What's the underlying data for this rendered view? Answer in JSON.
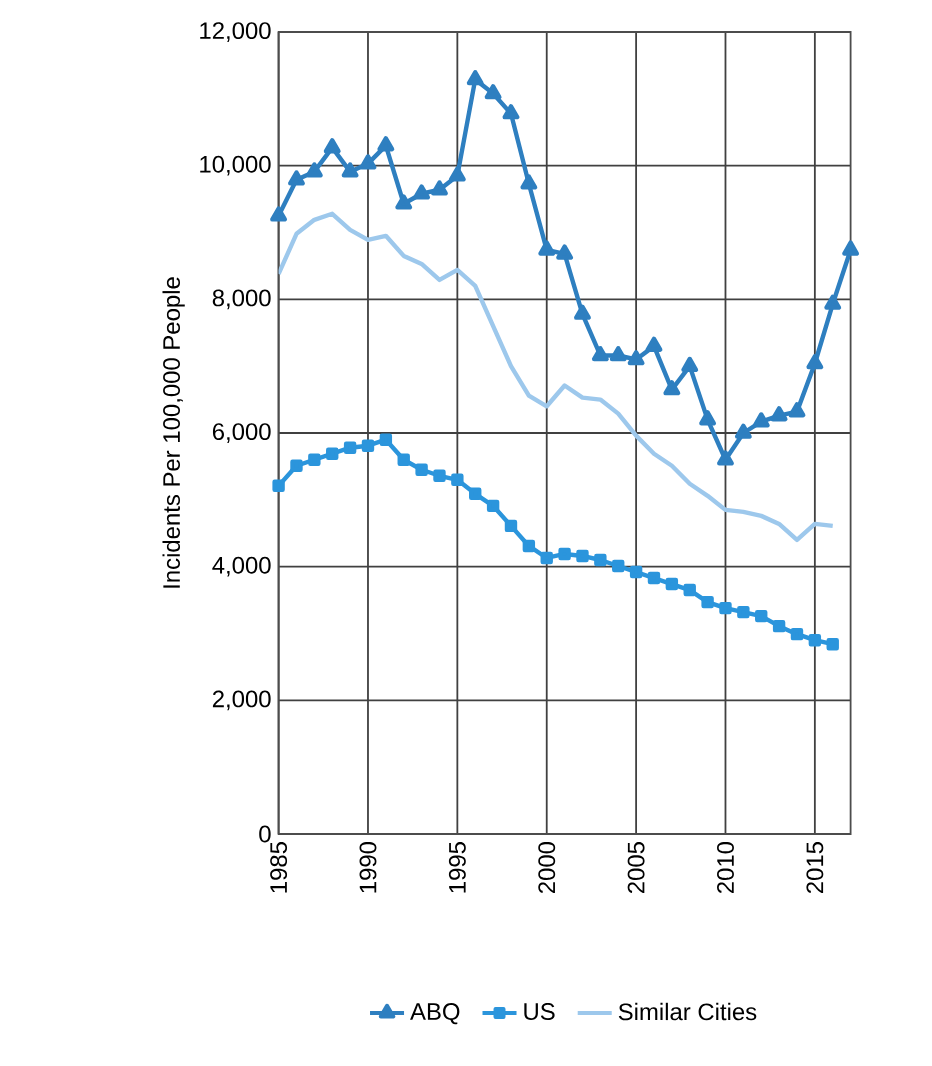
{
  "chart_data": {
    "type": "line",
    "ylabel": "Incidents Per 100,000 People",
    "x": [
      1985,
      1986,
      1987,
      1988,
      1989,
      1990,
      1991,
      1992,
      1993,
      1994,
      1995,
      1996,
      1997,
      1998,
      1999,
      2000,
      2001,
      2002,
      2003,
      2004,
      2005,
      2006,
      2007,
      2008,
      2009,
      2010,
      2011,
      2012,
      2013,
      2014,
      2015,
      2016,
      2017
    ],
    "series": [
      {
        "name": "ABQ",
        "color": "#2e7fc0",
        "marker": "triangle",
        "values": [
          9250,
          9790,
          9910,
          10270,
          9910,
          10030,
          10300,
          9430,
          9580,
          9640,
          9850,
          11290,
          11080,
          10780,
          9730,
          8740,
          8680,
          7780,
          7160,
          7160,
          7100,
          7300,
          6650,
          7000,
          6200,
          5600,
          6000,
          6170,
          6260,
          6320,
          7040,
          7930,
          8740
        ]
      },
      {
        "name": "US",
        "color": "#2b95dc",
        "marker": "square",
        "values": [
          5210,
          5510,
          5600,
          5690,
          5780,
          5810,
          5900,
          5600,
          5450,
          5360,
          5300,
          5090,
          4910,
          4610,
          4310,
          4130,
          4190,
          4160,
          4100,
          4010,
          3920,
          3830,
          3740,
          3650,
          3470,
          3380,
          3320,
          3260,
          3110,
          2990,
          2900,
          2840,
          null
        ]
      },
      {
        "name": "Similar Cities",
        "color": "#9dc8ec",
        "marker": "none",
        "values": [
          8380,
          8980,
          9190,
          9280,
          9040,
          8890,
          8950,
          8650,
          8530,
          8290,
          8440,
          8200,
          7600,
          7000,
          6560,
          6400,
          6710,
          6530,
          6500,
          6290,
          5960,
          5690,
          5510,
          5240,
          5060,
          4850,
          4820,
          4760,
          4640,
          4400,
          4640,
          4610,
          null
        ]
      }
    ],
    "xlim": [
      1985,
      2017
    ],
    "ylim": [
      0,
      12000
    ],
    "xticks": [
      1985,
      1990,
      1995,
      2000,
      2005,
      2010,
      2015
    ],
    "yticks": [
      0,
      {
        "value": 2000,
        "label": "2,000"
      },
      {
        "value": 4000,
        "label": "4,000"
      },
      {
        "value": 6000,
        "label": "6,000"
      },
      {
        "value": 8000,
        "label": "8,000"
      },
      {
        "value": 10000,
        "label": "10,000"
      },
      {
        "value": 12000,
        "label": "12,000"
      }
    ],
    "grid": true,
    "legend": "bottom"
  }
}
